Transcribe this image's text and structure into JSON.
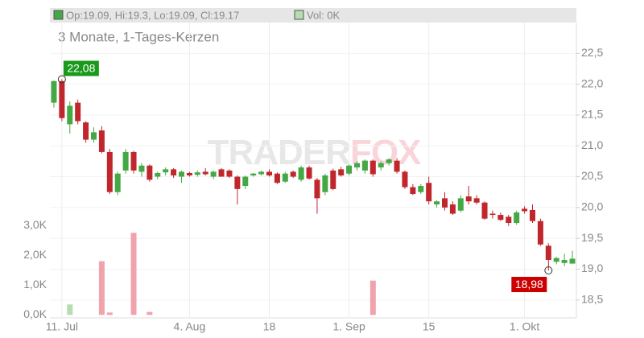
{
  "chart_data": {
    "type": "candlestick",
    "subtitle": "3 Monate, 1-Tages-Kerzen",
    "header": {
      "price": "Op:19.09, Hi:19.3, Lo:19.09, Cl:19.17",
      "volume": "Vol: 0K"
    },
    "watermark": [
      "TRADER",
      "FOX"
    ],
    "categories": [
      null,
      "11. Jul",
      null,
      null,
      null,
      null,
      null,
      null,
      null,
      null,
      null,
      null,
      null,
      null,
      null,
      null,
      null,
      "4. Aug",
      null,
      null,
      null,
      null,
      null,
      null,
      null,
      null,
      null,
      "18",
      null,
      null,
      null,
      null,
      null,
      null,
      null,
      null,
      null,
      "1. Sep",
      null,
      null,
      null,
      null,
      null,
      null,
      null,
      null,
      null,
      "15",
      null,
      null,
      null,
      null,
      null,
      null,
      null,
      null,
      null,
      null,
      null,
      "1. Okt",
      null,
      null,
      null,
      null,
      null,
      null
    ],
    "open": [
      21.7,
      22.05,
      21.35,
      21.7,
      21.38,
      21.1,
      21.25,
      20.9,
      20.25,
      20.6,
      20.9,
      20.58,
      20.68,
      20.5,
      20.57,
      20.62,
      20.5,
      20.56,
      20.53,
      20.58,
      20.5,
      20.62,
      20.6,
      20.5,
      20.35,
      20.52,
      20.54,
      20.58,
      20.55,
      20.42,
      20.58,
      20.45,
      20.65,
      20.45,
      20.25,
      20.6,
      20.62,
      20.55,
      20.65,
      20.6,
      20.76,
      20.65,
      20.72,
      20.76,
      20.58,
      20.33,
      20.25,
      20.4,
      20.05,
      20.15,
      20.05,
      19.95,
      20.18,
      20.15,
      20.08,
      19.9,
      19.88,
      19.85,
      19.75,
      19.98,
      19.96,
      19.78,
      19.38,
      19.12,
      19.1,
      19.09
    ],
    "high": [
      22.06,
      22.08,
      21.72,
      21.75,
      21.4,
      21.3,
      21.32,
      20.95,
      20.58,
      20.95,
      20.92,
      20.72,
      20.7,
      20.58,
      20.65,
      20.64,
      20.6,
      20.58,
      20.6,
      20.64,
      20.6,
      20.64,
      20.62,
      20.52,
      20.52,
      20.56,
      20.6,
      20.62,
      20.57,
      20.58,
      20.6,
      20.68,
      20.68,
      20.48,
      20.55,
      20.63,
      20.66,
      20.7,
      20.75,
      20.78,
      20.78,
      20.75,
      20.8,
      20.8,
      20.6,
      20.38,
      20.38,
      20.5,
      20.12,
      20.25,
      20.1,
      20.2,
      20.35,
      20.2,
      20.1,
      19.95,
      19.92,
      19.88,
      19.95,
      20.02,
      20.05,
      19.82,
      19.42,
      19.2,
      19.25,
      19.3
    ],
    "low": [
      21.62,
      21.4,
      21.2,
      21.35,
      21.05,
      21.05,
      20.88,
      20.22,
      20.2,
      20.55,
      20.55,
      20.5,
      20.42,
      20.46,
      20.52,
      20.48,
      20.4,
      20.5,
      20.5,
      20.52,
      20.46,
      20.5,
      20.48,
      20.05,
      20.3,
      20.5,
      20.52,
      20.5,
      20.38,
      20.4,
      20.48,
      20.42,
      20.45,
      19.9,
      20.2,
      20.28,
      20.5,
      20.52,
      20.6,
      20.55,
      20.5,
      20.6,
      20.68,
      20.55,
      20.3,
      20.2,
      20.22,
      20.05,
      20.0,
      19.95,
      19.88,
      19.92,
      20.05,
      20.05,
      19.8,
      19.82,
      19.78,
      19.7,
      19.72,
      19.9,
      19.75,
      19.38,
      18.98,
      19.08,
      19.05,
      19.09
    ],
    "close": [
      22.05,
      21.45,
      21.65,
      21.4,
      21.1,
      21.22,
      20.9,
      20.25,
      20.55,
      20.9,
      20.6,
      20.68,
      20.45,
      20.56,
      20.62,
      20.52,
      20.58,
      20.52,
      20.57,
      20.54,
      20.58,
      20.5,
      20.5,
      20.3,
      20.5,
      20.55,
      20.58,
      20.52,
      20.4,
      20.55,
      20.5,
      20.65,
      20.47,
      20.15,
      20.52,
      20.3,
      20.52,
      20.68,
      20.72,
      20.76,
      20.54,
      20.72,
      20.78,
      20.58,
      20.33,
      20.22,
      20.35,
      20.1,
      20.1,
      20.0,
      19.9,
      20.15,
      20.1,
      20.08,
      19.82,
      19.88,
      19.8,
      19.75,
      19.92,
      19.94,
      19.78,
      19.4,
      19.15,
      19.18,
      19.15,
      19.17
    ],
    "volume": [
      0,
      0,
      350,
      0,
      0,
      0,
      1800,
      80,
      0,
      0,
      2750,
      0,
      100,
      0,
      0,
      0,
      0,
      0,
      0,
      0,
      0,
      0,
      0,
      0,
      0,
      0,
      0,
      0,
      0,
      0,
      0,
      0,
      0,
      0,
      0,
      0,
      0,
      0,
      0,
      0,
      1150,
      0,
      0,
      0,
      0,
      0,
      0,
      0,
      0,
      0,
      0,
      0,
      0,
      0,
      0,
      0,
      0,
      0,
      0,
      0,
      0,
      0,
      0,
      0,
      0,
      0
    ],
    "up_color": "#44a844",
    "down_color": "#c0272d",
    "volume_up_color": "#b5dcb3",
    "volume_down_color": "#f0a3ad",
    "ylim": [
      18.21,
      23.0
    ],
    "yticks": [
      {
        "value": 18.5,
        "label": "18,5"
      },
      {
        "value": 19.0,
        "label": "19,0"
      },
      {
        "value": 19.5,
        "label": "19,5"
      },
      {
        "value": 20.0,
        "label": "20,0"
      },
      {
        "value": 20.5,
        "label": "20,5"
      },
      {
        "value": 21.0,
        "label": "21,0"
      },
      {
        "value": 21.5,
        "label": "21,5"
      },
      {
        "value": 22.0,
        "label": "22,0"
      },
      {
        "value": 22.5,
        "label": "22,5"
      }
    ],
    "y2lim": [
      -100,
      9800
    ],
    "y2ticks": [
      {
        "value": 0,
        "label": "0,0K"
      },
      {
        "value": 1000,
        "label": "1,0K"
      },
      {
        "value": 2000,
        "label": "2,0K"
      },
      {
        "value": 3000,
        "label": "3,0K"
      }
    ],
    "annotations": [
      {
        "text": "22,08",
        "value": 22.08,
        "kind": "high",
        "color": "#1a9a1a"
      },
      {
        "text": "18,98",
        "value": 18.98,
        "kind": "low",
        "color": "#cc0000"
      }
    ],
    "grid": true
  }
}
